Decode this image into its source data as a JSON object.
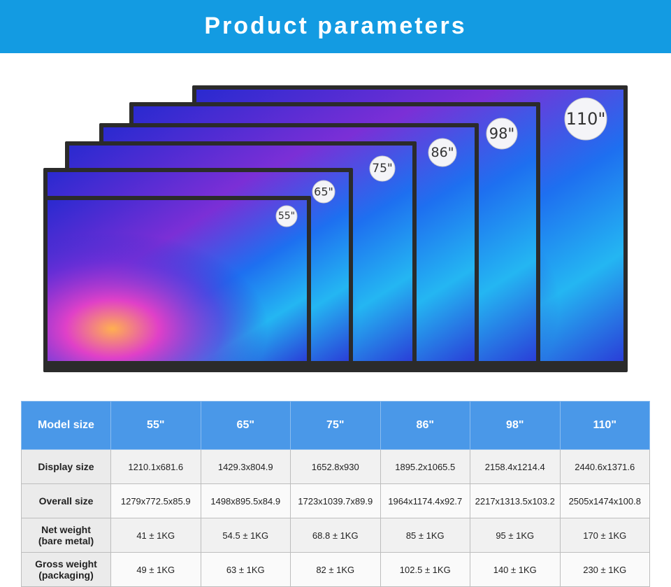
{
  "header": {
    "title": "Product parameters"
  },
  "screens": [
    "55\"",
    "65\"",
    "75\"",
    "86\"",
    "98\"",
    "110\""
  ],
  "table": {
    "header": [
      "Model size",
      "55\"",
      "65\"",
      "75\"",
      "86\"",
      "98\"",
      "110\""
    ],
    "rows": [
      {
        "label": [
          "Display size"
        ],
        "cells": [
          "1210.1x681.6",
          "1429.3x804.9",
          "1652.8x930",
          "1895.2x1065.5",
          "2158.4x1214.4",
          "2440.6x1371.6"
        ]
      },
      {
        "label": [
          "Overall size"
        ],
        "cells": [
          "1279x772.5x85.9",
          "1498x895.5x84.9",
          "1723x1039.7x89.9",
          "1964x1174.4x92.7",
          "2217x1313.5x103.2",
          "2505x1474x100.8"
        ]
      },
      {
        "label": [
          "Net weight",
          "(bare metal)"
        ],
        "cells": [
          "41 ± 1KG",
          "54.5 ± 1KG",
          "68.8 ± 1KG",
          "85 ± 1KG",
          "95 ± 1KG",
          "170 ± 1KG"
        ]
      },
      {
        "label": [
          "Gross weight",
          "(packaging)"
        ],
        "cells": [
          "49 ± 1KG",
          "63 ± 1KG",
          "82 ± 1KG",
          "102.5 ± 1KG",
          "140 ± 1KG",
          "230 ± 1KG"
        ]
      }
    ]
  }
}
